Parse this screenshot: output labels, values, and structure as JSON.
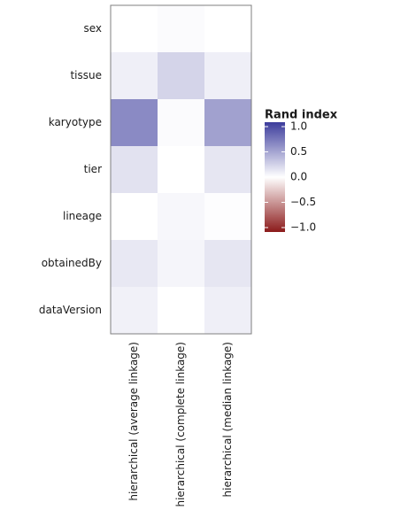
{
  "chart_data": {
    "type": "heatmap",
    "x_categories": [
      "hierarchical (average linkage)",
      "hierarchical (complete linkage)",
      "hierarchical (median linkage)"
    ],
    "y_categories": [
      "sex",
      "tissue",
      "karyotype",
      "tier",
      "lineage",
      "obtainedBy",
      "dataVersion"
    ],
    "z": [
      [
        0.0,
        0.02,
        0.0
      ],
      [
        0.08,
        0.22,
        0.08
      ],
      [
        0.6,
        0.02,
        0.48
      ],
      [
        0.15,
        0.0,
        0.13
      ],
      [
        0.0,
        0.04,
        0.01
      ],
      [
        0.12,
        0.05,
        0.13
      ],
      [
        0.07,
        0.0,
        0.08
      ]
    ],
    "legend_title": "Rand index",
    "zlim": [
      -1,
      1
    ],
    "zticks": [
      {
        "value": 1,
        "label": "1.0"
      },
      0.5,
      {
        "value": 0,
        "label": "0.0"
      },
      {
        "value": -0.5,
        "label": "−0.5"
      },
      {
        "value": -1,
        "label": "−1.0"
      }
    ],
    "colors": {
      "low": "#8b1a1a",
      "mid": "#ffffff",
      "high": "#3c3c9c"
    }
  }
}
